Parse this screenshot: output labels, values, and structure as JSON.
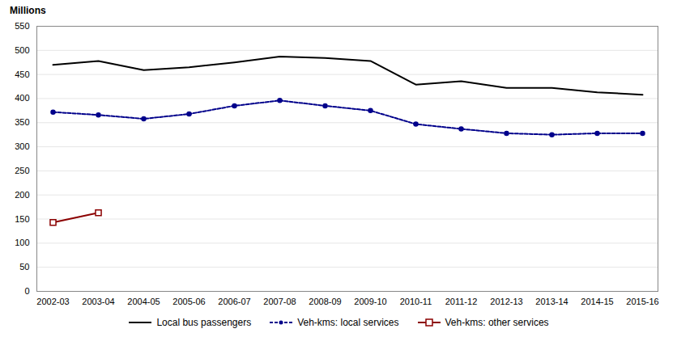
{
  "chart_data": {
    "type": "line",
    "ylabel": "Millions",
    "categories": [
      "2002-03",
      "2003-04",
      "2004-05",
      "2005-06",
      "2006-07",
      "2007-08",
      "2008-09",
      "2009-10",
      "2010-11",
      "2011-12",
      "2012-13",
      "2013-14",
      "2014-15",
      "2015-16"
    ],
    "series": [
      {
        "name": "Local bus passengers",
        "color": "#000000",
        "line_style": "solid",
        "values": [
          470,
          478,
          459,
          465,
          475,
          487,
          484,
          478,
          429,
          436,
          422,
          422,
          413,
          408
        ]
      },
      {
        "name": "Veh-kms: local services",
        "color": "#00008B",
        "line_style": "dashed",
        "marker": "circle",
        "values": [
          372,
          366,
          358,
          368,
          385,
          396,
          385,
          375,
          347,
          337,
          328,
          325,
          328,
          328
        ]
      },
      {
        "name": "Veh-kms: other services",
        "color": "#8B0000",
        "line_style": "solid",
        "marker": "square",
        "values": [
          143,
          163,
          null,
          null,
          null,
          null,
          null,
          null,
          null,
          null,
          null,
          null,
          null,
          null
        ]
      }
    ],
    "ylim": [
      0,
      550
    ],
    "yticks": [
      0,
      50,
      100,
      150,
      200,
      250,
      300,
      350,
      400,
      450,
      500,
      550
    ],
    "grid": true,
    "legend": "bottom"
  }
}
